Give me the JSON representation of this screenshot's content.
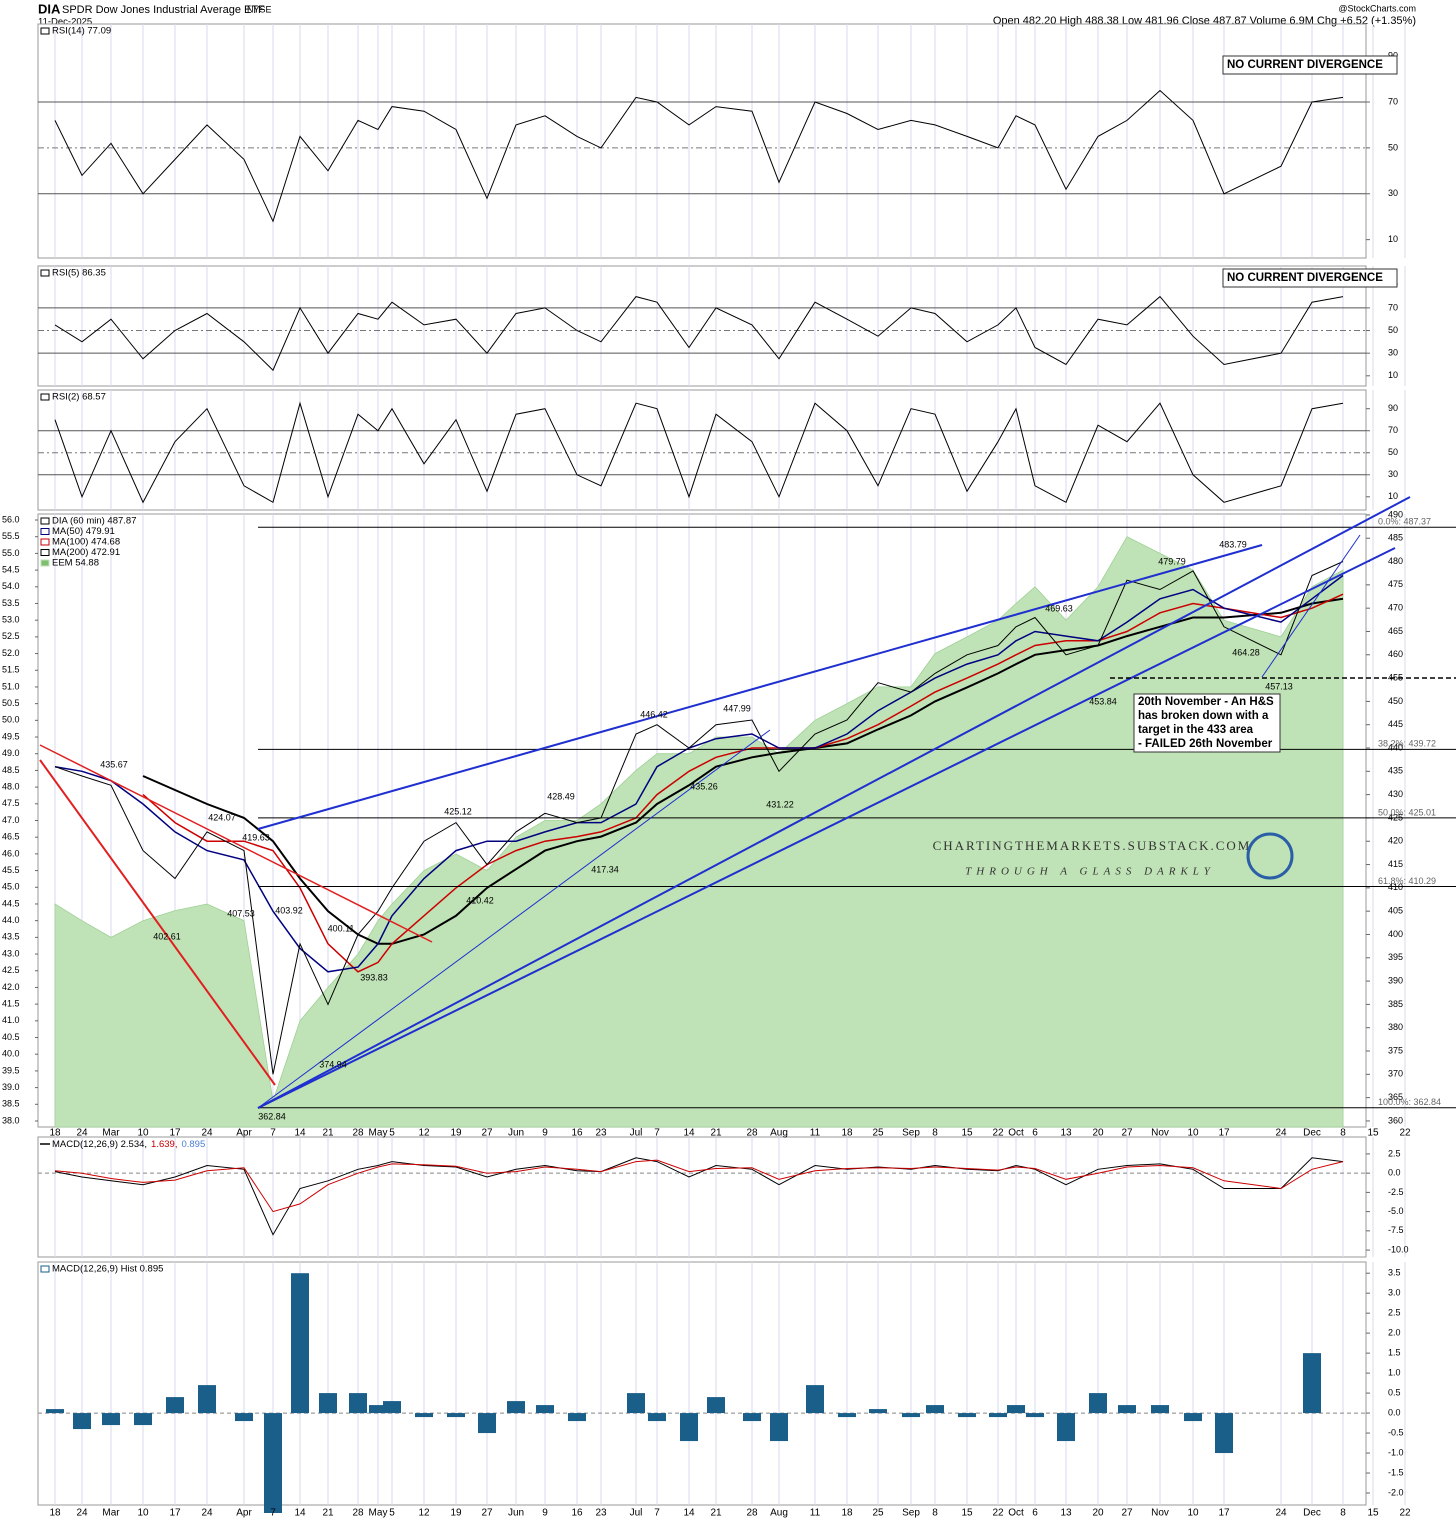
{
  "header": {
    "symbol": "DIA",
    "name": "SPDR Dow Jones Industrial Average ETF",
    "exchange": "NYSE",
    "date": "11-Dec-2025",
    "source": "@StockCharts.com",
    "quote": "Open 482.20 High 488.38 Low 481.96 Close 487.87 Volume 6.9M Chg +6.52 (+1.35%)"
  },
  "chart_data": [
    {
      "type": "line",
      "note": "NO CURRENT DIVERGENCE",
      "ylim": [
        2,
        104
      ],
      "yticks": [
        10,
        30,
        50,
        70,
        90
      ],
      "levels": [
        30,
        50,
        70
      ],
      "series": [
        {
          "name": "RSI(14) 77.09",
          "color": "#000000",
          "values": [
            62,
            38,
            52,
            30,
            45,
            60,
            45,
            18,
            55,
            40,
            62,
            58,
            68,
            66,
            58,
            28,
            60,
            64,
            55,
            50,
            72,
            70,
            60,
            68,
            66,
            35,
            70,
            65,
            58,
            62,
            60,
            55,
            50,
            64,
            60,
            32,
            55,
            62,
            75,
            62,
            30,
            42,
            70,
            72,
            null,
            null
          ]
        }
      ]
    },
    {
      "type": "line",
      "note": "NO CURRENT DIVERGENCE",
      "ylim": [
        1,
        107
      ],
      "yticks": [
        10,
        30,
        50,
        70,
        90
      ],
      "levels": [
        30,
        50,
        70
      ],
      "series": [
        {
          "name": "RSI(5) 86.35",
          "color": "#000000",
          "values": [
            55,
            40,
            60,
            25,
            50,
            65,
            40,
            15,
            70,
            30,
            65,
            60,
            75,
            55,
            60,
            30,
            65,
            70,
            50,
            40,
            80,
            75,
            35,
            70,
            55,
            25,
            75,
            60,
            45,
            70,
            65,
            40,
            55,
            70,
            35,
            20,
            60,
            55,
            80,
            45,
            20,
            30,
            75,
            80,
            null,
            null
          ]
        }
      ]
    },
    {
      "type": "line",
      "ylim": [
        -2,
        107
      ],
      "yticks": [
        10,
        30,
        50,
        70,
        90
      ],
      "levels": [
        30,
        50,
        70
      ],
      "series": [
        {
          "name": "RSI(2) 68.57",
          "color": "#000000",
          "values": [
            80,
            10,
            70,
            5,
            60,
            90,
            20,
            5,
            95,
            10,
            85,
            70,
            90,
            40,
            80,
            15,
            85,
            90,
            30,
            20,
            95,
            90,
            10,
            85,
            60,
            10,
            95,
            70,
            20,
            90,
            85,
            15,
            60,
            90,
            20,
            5,
            75,
            60,
            95,
            30,
            5,
            20,
            90,
            95,
            null,
            null
          ]
        }
      ]
    },
    {
      "type": "line",
      "categories": [
        "18",
        "24",
        "Mar",
        "10",
        "17",
        "24",
        "Apr",
        "7",
        "14",
        "21",
        "28",
        "May",
        "5",
        "12",
        "19",
        "27",
        "Jun",
        "9",
        "16",
        "23",
        "Jul",
        "7",
        "14",
        "21",
        "28",
        "Aug",
        "11",
        "18",
        "25",
        "Sep",
        "8",
        "15",
        "22",
        "Oct",
        "6",
        "13",
        "20",
        "27",
        "Nov",
        "10",
        "17",
        "24",
        "Dec",
        "8",
        "15",
        "22"
      ],
      "ylim": [
        358.7,
        490.2
      ],
      "yticks": [
        360,
        365,
        370,
        375,
        380,
        385,
        390,
        395,
        400,
        405,
        410,
        415,
        420,
        425,
        430,
        435,
        440,
        445,
        450,
        455,
        460,
        465,
        470,
        475,
        480,
        485,
        490
      ],
      "y2lim": [
        37.82,
        56.18
      ],
      "y2ticks": [
        {
          "value": 38,
          "label": "38.0"
        },
        38.5,
        {
          "value": 39,
          "label": "39.0"
        },
        39.5,
        {
          "value": 40,
          "label": "40.0"
        },
        40.5,
        {
          "value": 41,
          "label": "41.0"
        },
        41.5,
        {
          "value": 42,
          "label": "42.0"
        },
        42.5,
        {
          "value": 43,
          "label": "43.0"
        },
        43.5,
        {
          "value": 44,
          "label": "44.0"
        },
        44.5,
        {
          "value": 45,
          "label": "45.0"
        },
        45.5,
        {
          "value": 46,
          "label": "46.0"
        },
        46.5,
        {
          "value": 47,
          "label": "47.0"
        },
        47.5,
        {
          "value": 48,
          "label": "48.0"
        },
        48.5,
        {
          "value": 49,
          "label": "49.0"
        },
        49.5,
        {
          "value": 50,
          "label": "50.0"
        },
        50.5,
        {
          "value": 51,
          "label": "51.0"
        },
        51.5,
        {
          "value": 52,
          "label": "52.0"
        },
        52.5,
        {
          "value": 53,
          "label": "53.0"
        },
        53.5,
        {
          "value": 54,
          "label": "54.0"
        },
        54.5,
        {
          "value": 55,
          "label": "55.0"
        },
        55.5,
        {
          "value": 56,
          "label": "56.0"
        }
      ],
      "series": [
        {
          "name": "EEM 54.88",
          "color": "#bfe3b6",
          "style": "area",
          "axis": "y2",
          "values": [
            44.5,
            44,
            43.5,
            44,
            44.3,
            44.5,
            44,
            38.6,
            41,
            42,
            43,
            44,
            44.5,
            45.5,
            46,
            45.5,
            46.5,
            47,
            47,
            47.5,
            48.5,
            49,
            49,
            49.5,
            49.5,
            49,
            50,
            50.5,
            51,
            51,
            52,
            52.5,
            53,
            53.5,
            54,
            53,
            54,
            55.5,
            55,
            54.5,
            53,
            52.5,
            54,
            54.5,
            null,
            null
          ]
        },
        {
          "name": "MA(200) 472.91",
          "color": "#000000",
          "width": 2,
          "values": [
            null,
            null,
            null,
            434,
            431,
            428,
            425,
            420,
            412,
            405,
            400,
            398,
            398,
            400,
            404,
            410,
            414,
            418,
            420,
            421,
            424,
            428,
            432,
            436,
            438,
            439,
            440,
            441,
            444,
            447,
            450,
            453,
            456,
            458,
            460,
            461,
            462,
            464,
            466,
            468,
            468,
            469,
            471,
            472,
            null,
            null
          ]
        },
        {
          "name": "MA(100) 474.68",
          "color": "#cc0000",
          "width": 1.5,
          "values": [
            null,
            null,
            null,
            430,
            424,
            420,
            420,
            418,
            410,
            398,
            392,
            394,
            398,
            404,
            410,
            415,
            418,
            420,
            421,
            422,
            425,
            430,
            435,
            438,
            440,
            440,
            440,
            442,
            445,
            449,
            452,
            455,
            458,
            460,
            462,
            463,
            463,
            465,
            469,
            471,
            470,
            468,
            470,
            473,
            null,
            null
          ]
        },
        {
          "name": "MA(50) 479.91",
          "color": "#000080",
          "width": 1.5,
          "values": [
            436,
            435,
            433,
            428,
            422,
            418,
            416,
            405,
            397,
            392,
            393,
            398,
            404,
            412,
            418,
            420,
            420,
            422,
            424,
            424,
            428,
            436,
            440,
            442,
            443,
            440,
            440,
            443,
            448,
            452,
            455,
            458,
            460,
            463,
            465,
            464,
            463,
            467,
            472,
            474,
            470,
            467,
            472,
            477,
            null,
            null
          ]
        },
        {
          "name": "DIA (60 min) 487.87",
          "color": "#000000",
          "width": 1,
          "values": [
            436,
            434,
            432,
            418,
            412,
            422,
            418,
            370,
            398,
            385,
            400,
            405,
            410,
            420,
            424,
            415,
            422,
            426,
            424,
            425,
            443,
            445,
            440,
            445,
            446,
            435,
            443,
            446,
            454,
            452,
            456,
            460,
            462,
            466,
            468,
            460,
            462,
            476,
            474,
            478,
            466,
            460,
            477,
            480,
            null,
            null
          ]
        }
      ],
      "fib_levels": [
        {
          "value": 487.37,
          "label": "0.0%: 487.37"
        },
        {
          "value": 439.72,
          "label": "38.2%: 439.72"
        },
        {
          "value": 425.01,
          "label": "50.0%: 425.01"
        },
        {
          "value": 410.29,
          "label": "61.8%: 410.29"
        },
        {
          "value": 362.84,
          "label": "100.0%: 362.84"
        }
      ],
      "annotations": [
        "435.67",
        "424.07",
        "419.63",
        "407.53",
        "403.92",
        "402.61",
        "400.11",
        "393.83",
        "374.94",
        "362.84",
        "425.12",
        "410.42",
        "428.49",
        "417.34",
        "446.42",
        "447.99",
        "435.26",
        "431.22",
        "469.63",
        "479.79",
        "483.79",
        "464.28",
        "457.13",
        "453.84"
      ],
      "callout": [
        "20th November - An H&S",
        "has broken down with a",
        "target in the 433 area",
        "- FAILED 26th November"
      ],
      "watermark": [
        "CHARTINGTHEMARKETS.SUBSTACK.COM",
        "THROUGH A GLASS DARKLY"
      ]
    },
    {
      "type": "line",
      "ylim": [
        -10.9,
        4.7
      ],
      "yticks": [
        2.5,
        {
          "value": 0,
          "label": "0.0"
        },
        -2.5,
        {
          "value": -5,
          "label": "-5.0"
        },
        -7.5,
        {
          "value": -10,
          "label": "-10.0"
        }
      ],
      "hist_label": "0.895",
      "series": [
        {
          "name": "MACD(12,26,9) 2.534,",
          "color": "#000000",
          "values": [
            0.2,
            -0.5,
            -1,
            -1.5,
            -0.5,
            1,
            0.5,
            -8,
            -2,
            -1,
            0.5,
            1,
            1.5,
            1,
            0.8,
            -0.5,
            0.5,
            1,
            0.3,
            0.2,
            2,
            1.5,
            -0.5,
            1,
            0.5,
            -1.5,
            1,
            0.5,
            0.8,
            0.5,
            1,
            0.5,
            0.3,
            1,
            0.5,
            -1.5,
            0.5,
            1,
            1.2,
            0.5,
            -2,
            -2,
            2,
            1.5,
            null,
            null
          ]
        },
        {
          "name": "1.639,",
          "color": "#cc0000",
          "values": [
            0.3,
            0,
            -0.7,
            -1.2,
            -0.9,
            0.3,
            0.7,
            -5,
            -4,
            -1.5,
            0,
            0.8,
            1.2,
            1.1,
            0.9,
            0,
            0.2,
            0.8,
            0.5,
            0.2,
            1.5,
            1.7,
            0.2,
            0.6,
            0.7,
            -0.8,
            0.3,
            0.6,
            0.7,
            0.6,
            0.8,
            0.6,
            0.4,
            0.8,
            0.6,
            -0.8,
            0,
            0.8,
            1,
            0.7,
            -1,
            -2,
            0.5,
            1.5,
            null,
            null
          ]
        }
      ]
    },
    {
      "type": "bar",
      "ylim": [
        -2.3,
        3.78
      ],
      "yticks": [
        3.5,
        {
          "value": 3,
          "label": "3.0"
        },
        2.5,
        {
          "value": 2,
          "label": "2.0"
        },
        1.5,
        {
          "value": 1,
          "label": "1.0"
        },
        0.5,
        {
          "value": 0,
          "label": "0.0"
        },
        -0.5,
        {
          "value": -1,
          "label": "-1.0"
        },
        -1.5,
        {
          "value": -2,
          "label": "-2.0"
        }
      ],
      "series": [
        {
          "name": "MACD(12,26,9) Hist 0.895",
          "color": "#1a5e8a",
          "values": [
            0.1,
            -0.4,
            -0.3,
            -0.3,
            0.4,
            0.7,
            -0.2,
            -2.5,
            3.5,
            0.5,
            0.5,
            0.2,
            0.3,
            -0.1,
            -0.1,
            -0.5,
            0.3,
            0.2,
            -0.2,
            0,
            0.5,
            -0.2,
            -0.7,
            0.4,
            -0.2,
            -0.7,
            0.7,
            -0.1,
            0.1,
            -0.1,
            0.2,
            -0.1,
            -0.1,
            0.2,
            -0.1,
            -0.7,
            0.5,
            0.2,
            0.2,
            -0.2,
            -1,
            0,
            1.5,
            0,
            null,
            null
          ]
        }
      ]
    }
  ]
}
